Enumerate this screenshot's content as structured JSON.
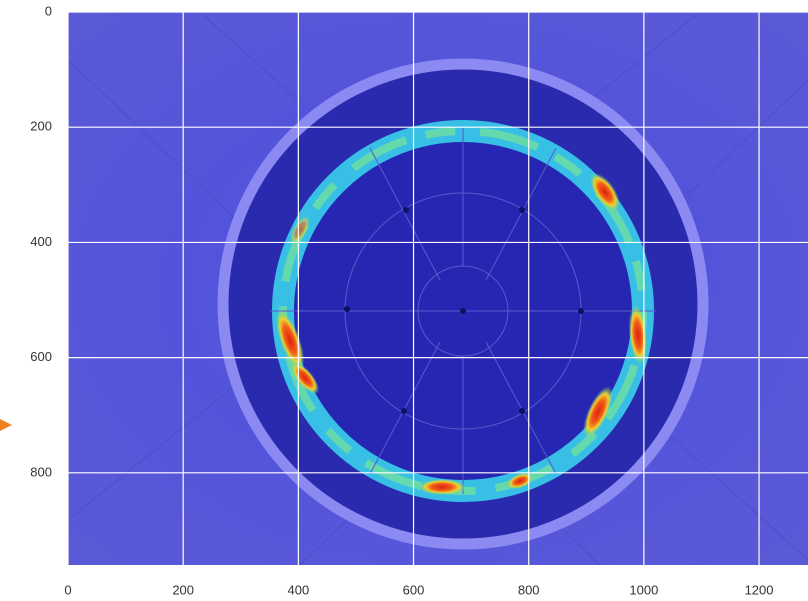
{
  "chart_data": {
    "type": "image",
    "xlim": [
      0,
      1285
    ],
    "ylim": [
      960,
      0
    ],
    "xticks": [
      0,
      200,
      400,
      600,
      800,
      1000,
      1200
    ],
    "yticks": [
      0,
      200,
      400,
      600,
      800
    ],
    "grid": true
  }
}
